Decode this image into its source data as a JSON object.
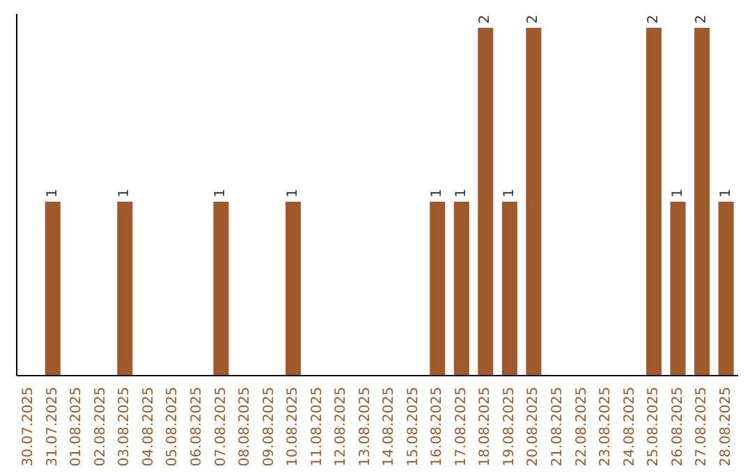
{
  "chart_data": {
    "type": "bar",
    "categories": [
      "30.07.2025",
      "31.07.2025",
      "01.08.2025",
      "02.08.2025",
      "03.08.2025",
      "04.08.2025",
      "05.08.2025",
      "06.08.2025",
      "07.08.2025",
      "08.08.2025",
      "09.08.2025",
      "10.08.2025",
      "11.08.2025",
      "12.08.2025",
      "13.08.2025",
      "14.08.2025",
      "15.08.2025",
      "16.08.2025",
      "17.08.2025",
      "18.08.2025",
      "19.08.2025",
      "20.08.2025",
      "21.08.2025",
      "22.08.2025",
      "23.08.2025",
      "24.08.2025",
      "25.08.2025",
      "26.08.2025",
      "27.08.2025",
      "28.08.2025"
    ],
    "values": [
      0,
      1,
      0,
      0,
      1,
      0,
      0,
      0,
      1,
      0,
      0,
      1,
      0,
      0,
      0,
      0,
      0,
      1,
      1,
      2,
      1,
      2,
      0,
      0,
      0,
      0,
      2,
      1,
      2,
      1
    ],
    "value_labels": [
      null,
      "1",
      null,
      null,
      "1",
      null,
      null,
      null,
      "1",
      null,
      null,
      "1",
      null,
      null,
      null,
      null,
      null,
      "1",
      "1",
      "2",
      "1",
      "2",
      null,
      null,
      null,
      null,
      "2",
      "1",
      "2",
      "1"
    ],
    "color": "#a0592a",
    "grid": false,
    "legend": false
  }
}
